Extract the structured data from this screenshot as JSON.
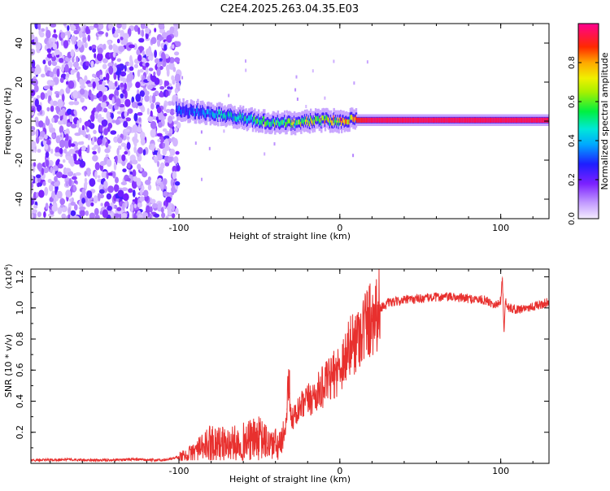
{
  "title": "C2E4.2025.263.04.35.E03",
  "chart_data": [
    {
      "type": "heatmap",
      "title": "C2E4.2025.263.04.35.E03",
      "xlabel": "Height of straight line (km)",
      "ylabel": "Frequency (Hz)",
      "xlim": [
        -192,
        130
      ],
      "ylim": [
        -50,
        50
      ],
      "x_ticks": [
        -100,
        0,
        100
      ],
      "x_tick_labels": [
        "-100",
        "0",
        "100"
      ],
      "y_ticks": [
        -40,
        -20,
        0,
        20,
        40
      ],
      "y_tick_labels": [
        "-40",
        "-20",
        "0",
        "20",
        "40"
      ],
      "colorbar": {
        "label": "Normalized spectral amplitude",
        "range": [
          0,
          1
        ],
        "ticks": [
          0.0,
          0.2,
          0.4,
          0.6,
          0.8
        ],
        "tick_labels": [
          "0.0",
          "0.2",
          "0.4",
          "0.6",
          "0.8"
        ]
      },
      "ridge": {
        "description_x": [
          -102,
          -90,
          -80,
          -70,
          -60,
          -50,
          -40,
          -30,
          -20,
          -10,
          0,
          5,
          10,
          20,
          50,
          100,
          130
        ],
        "frequency_hz": [
          6,
          5,
          4,
          3,
          1.5,
          0,
          -1,
          -1,
          0,
          0.5,
          0,
          1,
          0.5,
          0.5,
          0.5,
          0.5,
          0.5
        ],
        "amplitude": [
          0.35,
          0.4,
          0.45,
          0.5,
          0.55,
          0.6,
          0.65,
          0.7,
          0.75,
          0.8,
          0.85,
          0.85,
          0.9,
          0.95,
          0.95,
          0.95,
          0.95
        ]
      },
      "noise_region_x": [
        -192,
        -100
      ]
    },
    {
      "type": "line",
      "xlabel": "Height of straight line (km)",
      "ylabel": "SNR (10 * v/v)",
      "y_multiplier_label": "(x10",
      "y_multiplier_exponent": "4",
      "xlim": [
        -192,
        130
      ],
      "ylim": [
        0,
        1.25
      ],
      "x_ticks": [
        -100,
        0,
        100
      ],
      "x_tick_labels": [
        "-100",
        "0",
        "100"
      ],
      "y_ticks": [
        0.2,
        0.4,
        0.6,
        0.8,
        1.0,
        1.2
      ],
      "y_tick_labels": [
        "0.2",
        "0.4",
        "0.6",
        "0.8",
        "1.0",
        "1.2"
      ],
      "color": "#e8302e",
      "series": [
        {
          "name": "SNR",
          "x": [
            -192,
            -170,
            -150,
            -130,
            -110,
            -100,
            -95,
            -90,
            -85,
            -80,
            -75,
            -70,
            -65,
            -60,
            -55,
            -50,
            -45,
            -40,
            -38,
            -36,
            -34,
            -33,
            -32,
            -31,
            -30,
            -28,
            -25,
            -20,
            -15,
            -10,
            -5,
            0,
            5,
            10,
            15,
            20,
            25,
            30,
            40,
            50,
            60,
            70,
            80,
            90,
            95,
            98,
            100,
            101,
            102,
            103,
            105,
            110,
            115,
            120,
            125,
            130
          ],
          "y": [
            0.02,
            0.025,
            0.02,
            0.025,
            0.02,
            0.04,
            0.05,
            0.08,
            0.1,
            0.14,
            0.13,
            0.12,
            0.13,
            0.14,
            0.15,
            0.16,
            0.13,
            0.12,
            0.11,
            0.12,
            0.2,
            0.35,
            0.55,
            0.45,
            0.28,
            0.3,
            0.35,
            0.4,
            0.44,
            0.5,
            0.55,
            0.62,
            0.72,
            0.8,
            0.88,
            0.95,
            1.0,
            1.03,
            1.05,
            1.06,
            1.07,
            1.07,
            1.06,
            1.05,
            1.03,
            1.02,
            1.05,
            1.2,
            0.85,
            1.05,
            1.0,
            0.99,
            1.0,
            1.01,
            1.02,
            1.04
          ]
        }
      ]
    }
  ]
}
